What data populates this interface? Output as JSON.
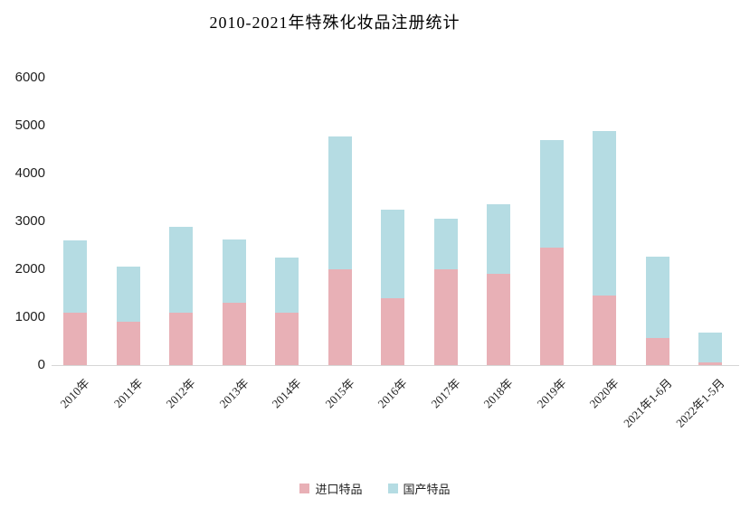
{
  "chart_data": {
    "type": "bar",
    "stacked": true,
    "title": "2010-2021年特殊化妆品注册统计",
    "categories": [
      "2010年",
      "2011年",
      "2012年",
      "2013年",
      "2014年",
      "2015年",
      "2016年",
      "2017年",
      "2018年",
      "2019年",
      "2020年",
      "2021年1-6月",
      "2022年1-5月"
    ],
    "series": [
      {
        "name": "进口特品",
        "color": "#E8B0B6",
        "values": [
          1100,
          900,
          1100,
          1300,
          1100,
          2000,
          1400,
          2000,
          1900,
          2450,
          1450,
          560,
          50
        ]
      },
      {
        "name": "国产特品",
        "color": "#B5DCE3",
        "values": [
          1500,
          1150,
          1780,
          1320,
          1150,
          2780,
          1850,
          1060,
          1450,
          2250,
          3430,
          1700,
          630
        ]
      }
    ],
    "totals": [
      2600,
      2050,
      2880,
      2620,
      2250,
      4780,
      3250,
      3060,
      3350,
      4700,
      4880,
      2260,
      680
    ],
    "xlabel": "",
    "ylabel": "",
    "ylim": [
      0,
      6000
    ],
    "yticks": [
      0,
      1000,
      2000,
      3000,
      4000,
      5000,
      6000
    ],
    "grid": false,
    "legend_position": "bottom",
    "background_color": "#ffffff",
    "axis_line_color": "#d6d6d6",
    "text_color": "#1f1f1f"
  }
}
